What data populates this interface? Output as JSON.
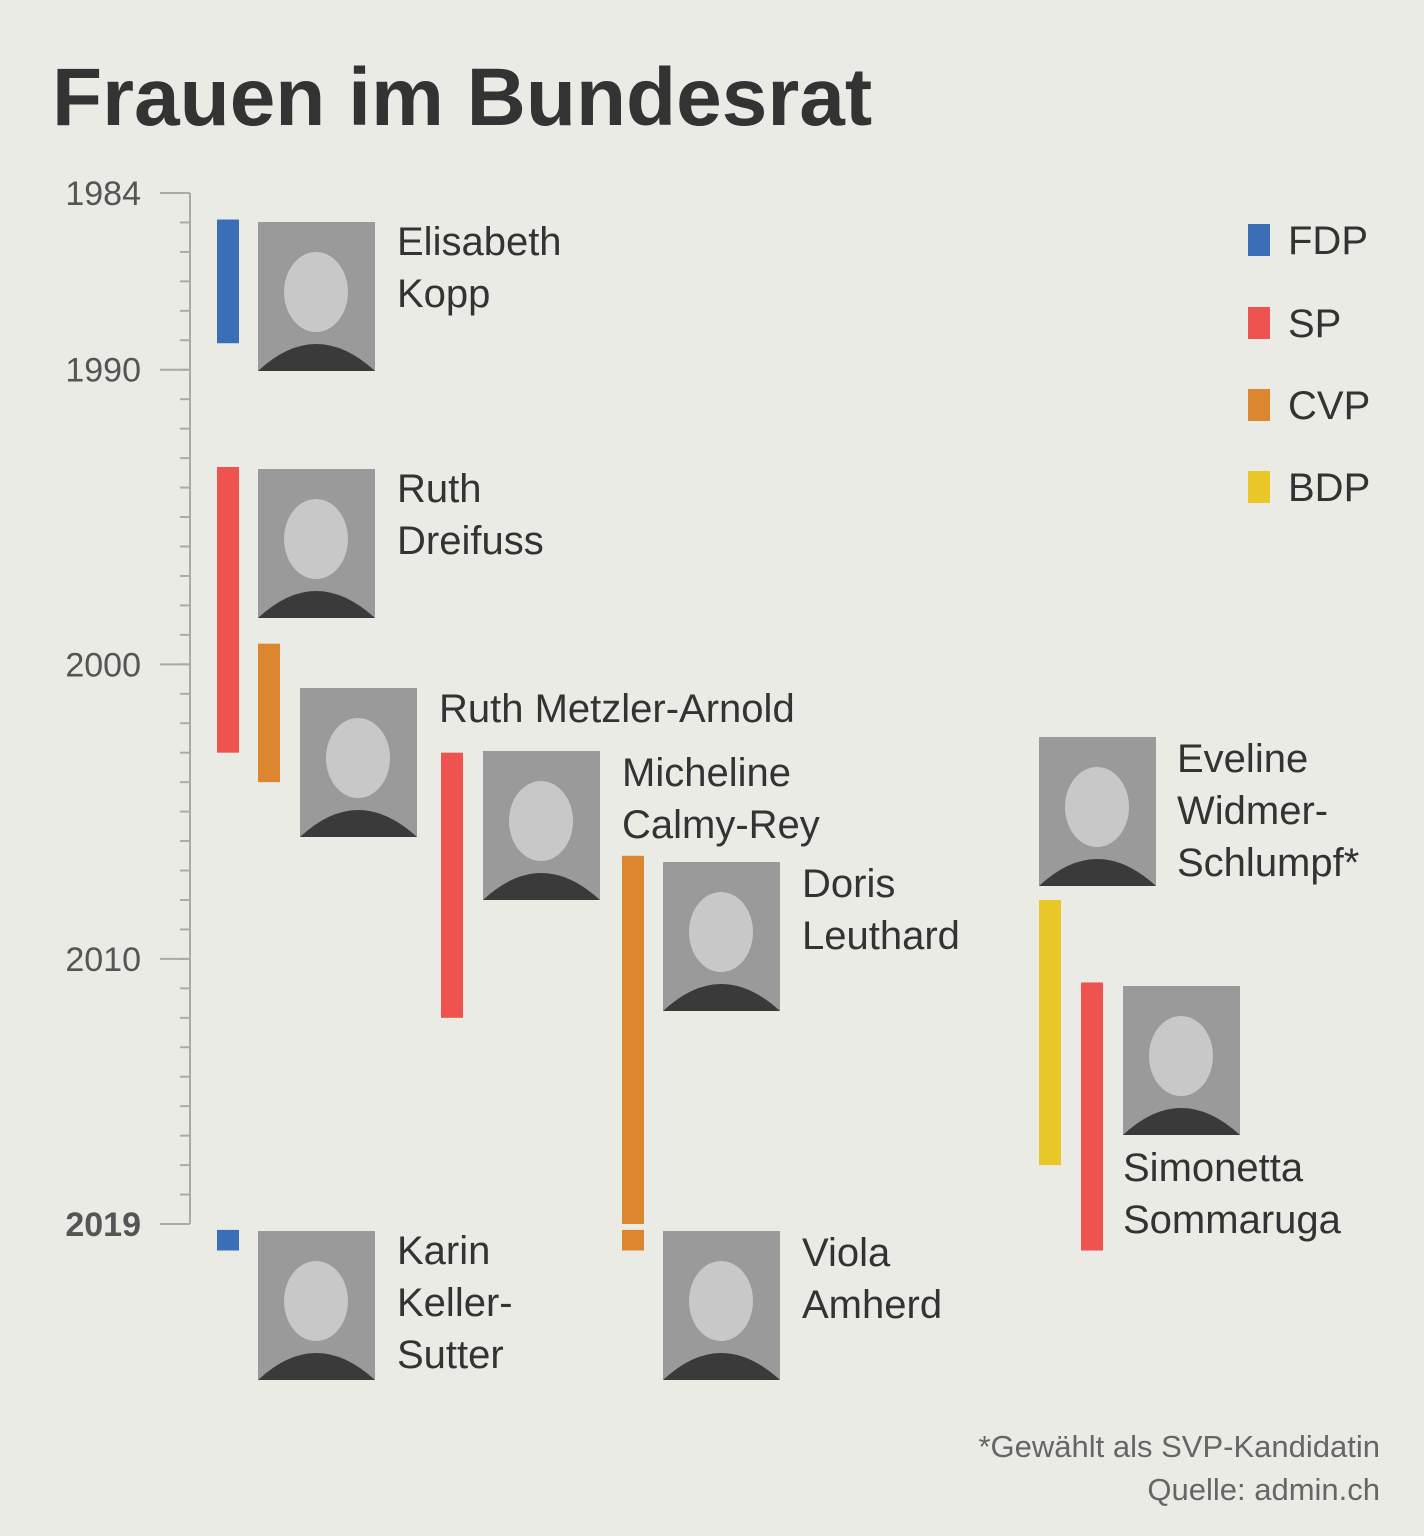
{
  "chart_data": {
    "type": "timeline",
    "title": "Frauen im Bundesrat",
    "ylim": [
      1984,
      2019
    ],
    "yticks": [
      1984,
      1990,
      2000,
      2010,
      2019
    ],
    "minor_tick_interval": 1,
    "parties": [
      {
        "name": "FDP",
        "color": "#3a6fb8"
      },
      {
        "name": "SP",
        "color": "#ef534f"
      },
      {
        "name": "CVP",
        "color": "#dc862f"
      },
      {
        "name": "BDP",
        "color": "#e8c727"
      }
    ],
    "people": [
      {
        "name_lines": [
          "Elisabeth",
          "Kopp"
        ],
        "party": "FDP",
        "start": 1984.9,
        "end": 1989.1
      },
      {
        "name_lines": [
          "Ruth",
          "Dreifuss"
        ],
        "party": "SP",
        "start": 1993.3,
        "end": 2003.0
      },
      {
        "name_lines": [
          "Ruth Metzler-Arnold"
        ],
        "party": "CVP",
        "start": 1999.3,
        "end": 2004.0
      },
      {
        "name_lines": [
          "Micheline",
          "Calmy-Rey"
        ],
        "party": "SP",
        "start": 2003.0,
        "end": 2012.0
      },
      {
        "name_lines": [
          "Doris",
          "Leuthard"
        ],
        "party": "CVP",
        "start": 2006.5,
        "end": 2019.0
      },
      {
        "name_lines": [
          "Eveline",
          "Widmer-",
          "Schlumpf*"
        ],
        "party": "BDP",
        "start": 2008.0,
        "end": 2017.0
      },
      {
        "name_lines": [
          "Simonetta",
          "Sommaruga"
        ],
        "party": "SP",
        "start": 2010.8,
        "end": 2019.9
      },
      {
        "name_lines": [
          "Karin",
          "Keller-",
          "Sutter"
        ],
        "party": "FDP",
        "start": 2019.2,
        "end": 2019.9
      },
      {
        "name_lines": [
          "Viola",
          "Amherd"
        ],
        "party": "CVP",
        "start": 2019.2,
        "end": 2019.9
      }
    ],
    "footnote": "*Gewählt als SVP-Kandidatin",
    "source": "Quelle: admin.ch"
  }
}
